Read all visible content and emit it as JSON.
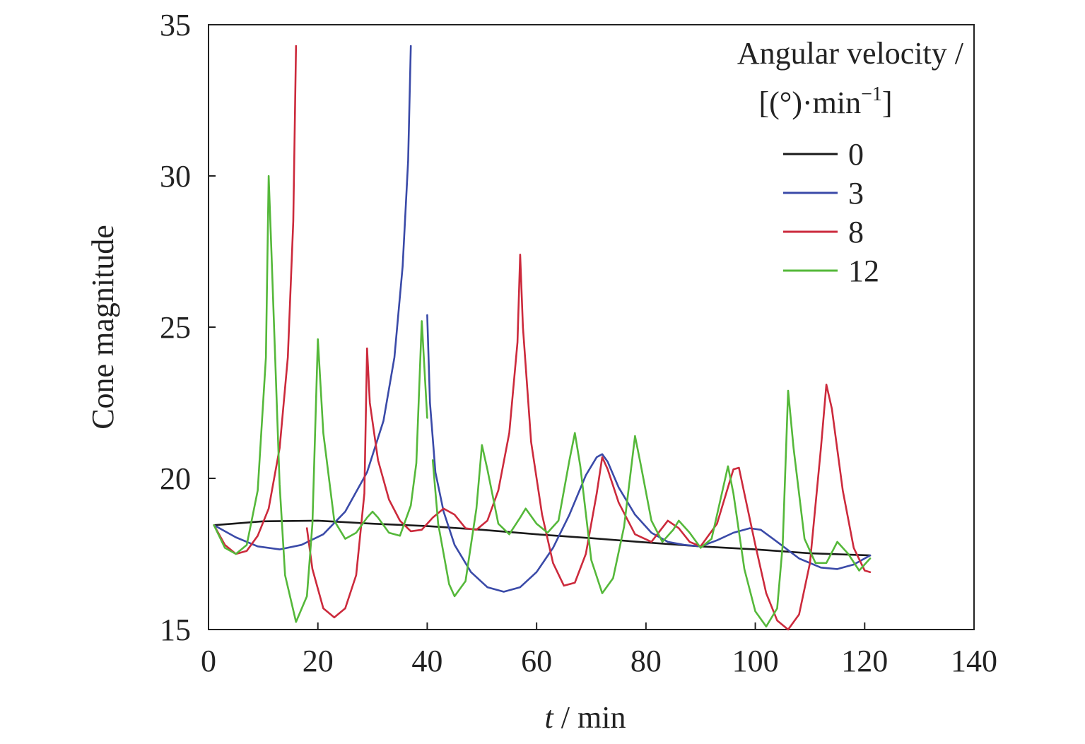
{
  "chart_data": {
    "type": "line",
    "title": "",
    "xlabel_var": "t",
    "xlabel_unit": " / min",
    "ylabel": "Cone magnitude",
    "xlim": [
      0,
      140
    ],
    "ylim": [
      15,
      35
    ],
    "xticks": [
      0,
      20,
      40,
      60,
      80,
      100,
      120,
      140
    ],
    "yticks": [
      15,
      20,
      25,
      30,
      35
    ],
    "grid": false,
    "legend": {
      "placement": "top-right",
      "title_line1": "Angular velocity /",
      "title_line2_base": "[(°)·min",
      "title_line2_sup": "−1",
      "title_line2_end": "]"
    },
    "series": [
      {
        "name": "0",
        "color": "#1a1a1a",
        "segments": [
          [
            [
              1,
              18.45
            ],
            [
              10,
              18.58
            ],
            [
              20,
              18.6
            ],
            [
              30,
              18.5
            ],
            [
              40,
              18.42
            ],
            [
              50,
              18.3
            ],
            [
              60,
              18.15
            ],
            [
              70,
              18.02
            ],
            [
              80,
              17.88
            ],
            [
              90,
              17.75
            ],
            [
              100,
              17.65
            ],
            [
              110,
              17.52
            ],
            [
              121,
              17.45
            ]
          ]
        ]
      },
      {
        "name": "3",
        "color": "#3a4aa8",
        "segments": [
          [
            [
              1,
              18.45
            ],
            [
              5,
              18.05
            ],
            [
              9,
              17.75
            ],
            [
              13,
              17.65
            ],
            [
              17,
              17.8
            ],
            [
              21,
              18.15
            ],
            [
              25,
              18.9
            ],
            [
              29,
              20.2
            ],
            [
              32,
              21.9
            ],
            [
              34,
              24.0
            ],
            [
              35.5,
              27.0
            ],
            [
              36.5,
              30.5
            ],
            [
              37,
              34.3
            ]
          ],
          [
            [
              40,
              25.4
            ],
            [
              40.5,
              22.5
            ],
            [
              41.5,
              20.2
            ],
            [
              43,
              18.9
            ],
            [
              45,
              17.8
            ],
            [
              48,
              16.9
            ],
            [
              51,
              16.4
            ],
            [
              54,
              16.25
            ],
            [
              57,
              16.4
            ],
            [
              60,
              16.9
            ],
            [
              63,
              17.7
            ],
            [
              66,
              18.8
            ],
            [
              69,
              20.1
            ],
            [
              71,
              20.7
            ],
            [
              72,
              20.8
            ],
            [
              73,
              20.55
            ],
            [
              75,
              19.7
            ],
            [
              78,
              18.8
            ],
            [
              81,
              18.2
            ],
            [
              84,
              17.9
            ],
            [
              87,
              17.8
            ],
            [
              90,
              17.75
            ],
            [
              93,
              17.95
            ],
            [
              96,
              18.2
            ],
            [
              99,
              18.35
            ],
            [
              101,
              18.3
            ],
            [
              104,
              17.9
            ],
            [
              108,
              17.35
            ],
            [
              112,
              17.05
            ],
            [
              115,
              17.0
            ],
            [
              118,
              17.15
            ],
            [
              121,
              17.45
            ]
          ]
        ]
      },
      {
        "name": "8",
        "color": "#cc2a3c",
        "segments": [
          [
            [
              1,
              18.45
            ],
            [
              3,
              17.8
            ],
            [
              5,
              17.5
            ],
            [
              7,
              17.6
            ],
            [
              9,
              18.1
            ],
            [
              11,
              19.0
            ],
            [
              13,
              21.0
            ],
            [
              14.5,
              24.0
            ],
            [
              15.5,
              28.5
            ],
            [
              16,
              34.3
            ]
          ],
          [
            [
              18,
              18.35
            ],
            [
              19,
              17.0
            ],
            [
              21,
              15.7
            ],
            [
              23,
              15.4
            ],
            [
              25,
              15.7
            ],
            [
              27,
              16.8
            ],
            [
              28.5,
              19.5
            ],
            [
              29,
              24.3
            ],
            [
              29.5,
              22.5
            ],
            [
              31,
              20.6
            ],
            [
              33,
              19.3
            ],
            [
              35,
              18.6
            ],
            [
              37,
              18.25
            ],
            [
              39,
              18.3
            ],
            [
              41,
              18.7
            ],
            [
              43,
              19.0
            ],
            [
              45,
              18.8
            ],
            [
              47,
              18.35
            ],
            [
              49,
              18.3
            ],
            [
              51,
              18.6
            ],
            [
              53,
              19.6
            ],
            [
              55,
              21.5
            ],
            [
              56.5,
              24.5
            ],
            [
              57,
              27.4
            ],
            [
              57.5,
              25.0
            ],
            [
              59,
              21.2
            ],
            [
              61,
              18.8
            ],
            [
              63,
              17.2
            ],
            [
              65,
              16.45
            ],
            [
              67,
              16.55
            ],
            [
              69,
              17.5
            ],
            [
              71,
              19.5
            ],
            [
              72,
              20.7
            ],
            [
              73,
              20.3
            ],
            [
              75,
              19.2
            ],
            [
              78,
              18.15
            ],
            [
              81,
              17.9
            ],
            [
              84,
              18.6
            ],
            [
              86,
              18.35
            ],
            [
              88,
              17.9
            ],
            [
              90,
              17.75
            ],
            [
              93,
              18.5
            ],
            [
              95,
              19.7
            ],
            [
              96,
              20.3
            ],
            [
              97,
              20.35
            ],
            [
              98,
              19.5
            ],
            [
              100,
              17.8
            ],
            [
              102,
              16.2
            ],
            [
              104,
              15.3
            ],
            [
              106,
              15.0
            ],
            [
              108,
              15.5
            ],
            [
              110,
              17.2
            ],
            [
              112,
              21.0
            ],
            [
              113,
              23.1
            ],
            [
              114,
              22.3
            ],
            [
              116,
              19.6
            ],
            [
              118,
              17.7
            ],
            [
              120,
              16.95
            ],
            [
              121,
              16.9
            ]
          ]
        ]
      },
      {
        "name": "12",
        "color": "#55b83a",
        "segments": [
          [
            [
              1,
              18.45
            ],
            [
              3,
              17.7
            ],
            [
              5,
              17.5
            ],
            [
              7,
              17.8
            ],
            [
              9,
              19.6
            ],
            [
              10.5,
              24.0
            ],
            [
              11,
              30.0
            ],
            [
              11.5,
              27.5
            ],
            [
              13,
              19.8
            ],
            [
              14,
              16.8
            ],
            [
              16,
              15.25
            ],
            [
              18,
              16.1
            ],
            [
              19,
              18.5
            ],
            [
              20,
              24.6
            ],
            [
              21,
              21.5
            ],
            [
              23,
              18.6
            ],
            [
              25,
              18.0
            ],
            [
              27,
              18.2
            ],
            [
              29,
              18.7
            ],
            [
              30,
              18.9
            ],
            [
              31,
              18.7
            ],
            [
              33,
              18.2
            ],
            [
              35,
              18.1
            ],
            [
              37,
              19.1
            ],
            [
              38,
              20.5
            ],
            [
              39,
              25.2
            ],
            [
              40,
              22.0
            ]
          ],
          [
            [
              41,
              20.6
            ],
            [
              42,
              18.5
            ],
            [
              44,
              16.5
            ],
            [
              45,
              16.1
            ],
            [
              47,
              16.6
            ],
            [
              49,
              19.0
            ],
            [
              50,
              21.1
            ],
            [
              51,
              20.3
            ],
            [
              53,
              18.5
            ],
            [
              55,
              18.15
            ],
            [
              57,
              18.7
            ],
            [
              58,
              19.0
            ],
            [
              60,
              18.5
            ],
            [
              62,
              18.2
            ],
            [
              64,
              18.6
            ],
            [
              66,
              20.6
            ],
            [
              67,
              21.5
            ],
            [
              68,
              20.4
            ],
            [
              70,
              17.3
            ],
            [
              72,
              16.2
            ],
            [
              74,
              16.7
            ],
            [
              76,
              18.4
            ],
            [
              78,
              21.4
            ],
            [
              79,
              20.5
            ],
            [
              81,
              18.6
            ],
            [
              83,
              17.9
            ],
            [
              85,
              18.3
            ],
            [
              86,
              18.6
            ],
            [
              88,
              18.2
            ],
            [
              90,
              17.7
            ],
            [
              92,
              18.0
            ],
            [
              94,
              19.6
            ],
            [
              95,
              20.4
            ],
            [
              96,
              19.5
            ],
            [
              98,
              17.0
            ],
            [
              100,
              15.6
            ],
            [
              102,
              15.1
            ],
            [
              104,
              15.7
            ],
            [
              105,
              17.8
            ],
            [
              106,
              22.9
            ],
            [
              107,
              21.0
            ],
            [
              109,
              18.0
            ],
            [
              111,
              17.2
            ],
            [
              113,
              17.2
            ],
            [
              115,
              17.9
            ],
            [
              117,
              17.5
            ],
            [
              119,
              16.95
            ],
            [
              121,
              17.35
            ]
          ]
        ]
      }
    ]
  }
}
